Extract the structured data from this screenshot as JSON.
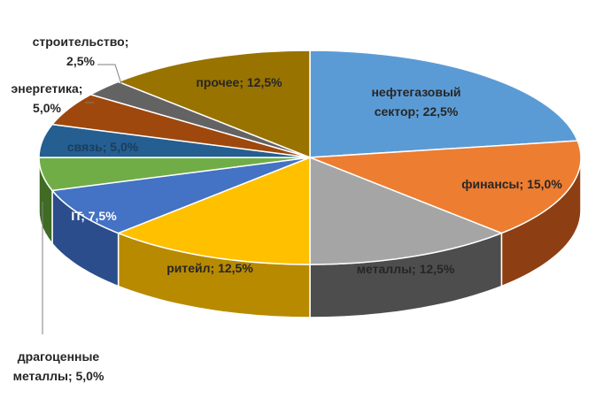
{
  "chart_data": {
    "type": "pie",
    "title": "",
    "slices": [
      {
        "label": "нефтегазовый сектор",
        "value": 22.5,
        "text": [
          "нефтегазовый",
          "сектор; 22,5%"
        ],
        "color": "#5b9bd5",
        "side": "#2e5f8f",
        "text_color": "#262626"
      },
      {
        "label": "финансы",
        "value": 15.0,
        "text": [
          "финансы; 15,0%"
        ],
        "color": "#ed7d31",
        "side": "#8e3e13",
        "text_color": "#262626"
      },
      {
        "label": "металлы",
        "value": 12.5,
        "text": [
          "металлы; 12,5%"
        ],
        "color": "#a5a5a5",
        "side": "#4d4d4d",
        "text_color": "#262626"
      },
      {
        "label": "ритейл",
        "value": 12.5,
        "text": [
          "ритейл; 12,5%"
        ],
        "color": "#ffc000",
        "side": "#b88a00",
        "text_color": "#262626"
      },
      {
        "label": "IT",
        "value": 7.5,
        "text": [
          "IT; 7,5%"
        ],
        "color": "#4472c4",
        "side": "#2b4d8c",
        "text_color": "#ffffff"
      },
      {
        "label": "драгоценные металлы",
        "value": 5.0,
        "text": [
          "драгоценные",
          "металлы; 5,0%"
        ],
        "color": "#70ad47",
        "side": "#3f6b24",
        "text_color": "#262626"
      },
      {
        "label": "связь",
        "value": 5.0,
        "text": [
          "связь; 5,0%"
        ],
        "color": "#255e91",
        "side": "#163a5a",
        "text_color": "#1b3d5e"
      },
      {
        "label": "энергетика",
        "value": 5.0,
        "text": [
          "энергетика;",
          "5,0%"
        ],
        "color": "#9e480e",
        "side": "#5c2a08",
        "text_color": "#262626"
      },
      {
        "label": "строительство",
        "value": 2.5,
        "text": [
          "строительство;",
          "2,5%"
        ],
        "color": "#636363",
        "side": "#333333",
        "text_color": "#262626"
      },
      {
        "label": "прочее",
        "value": 12.5,
        "text": [
          "прочее; 12,5%"
        ],
        "color": "#997300",
        "side": "#5e4700",
        "text_color": "#262626"
      }
    ]
  }
}
